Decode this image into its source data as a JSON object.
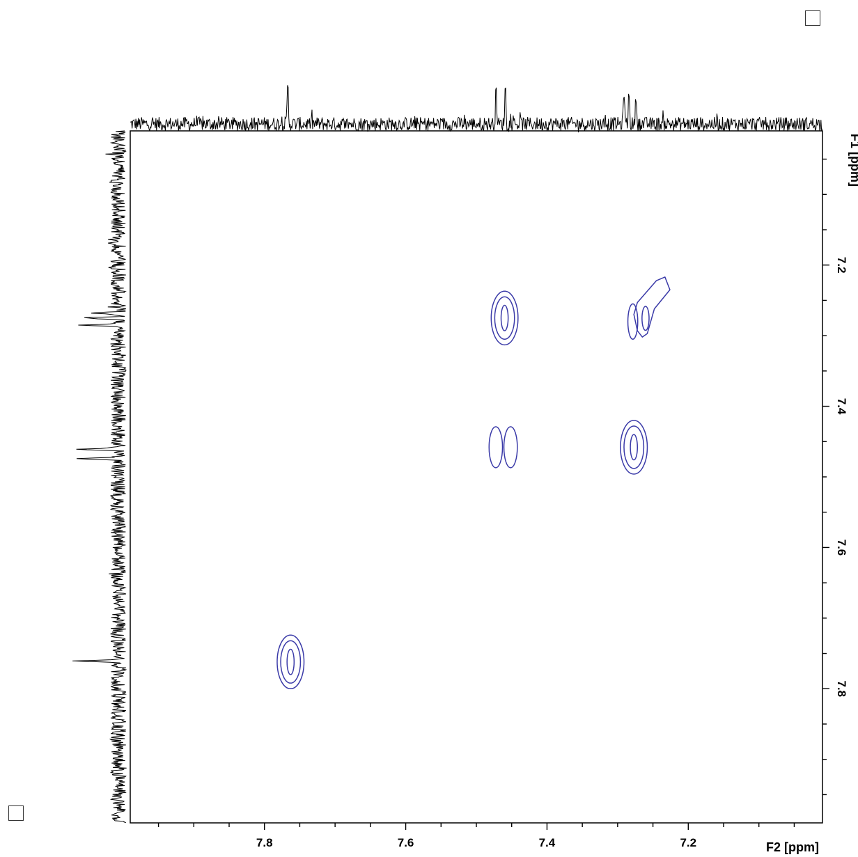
{
  "chart_data": {
    "type": "contour",
    "xlabel": "F2 [ppm]",
    "ylabel": "F1 [ppm]",
    "xlim": [
      7.99,
      7.01
    ],
    "ylim": [
      7.01,
      7.99
    ],
    "x_ticks": [
      7.8,
      7.6,
      7.4,
      7.2
    ],
    "y_ticks": [
      7.2,
      7.4,
      7.6,
      7.8
    ],
    "x_tick_labels": [
      "7.8",
      "7.6",
      "7.4",
      "7.2"
    ],
    "y_tick_labels": [
      "7.2",
      "7.4",
      "7.6",
      "7.8"
    ],
    "contour_color": "#3a3aa8",
    "projection_color": "#000000",
    "peaks": [
      {
        "x": 7.763,
        "y": 7.762,
        "levels": 3,
        "shape": "single"
      },
      {
        "x": 7.46,
        "y": 7.275,
        "levels": 3,
        "shape": "single"
      },
      {
        "x": 7.462,
        "y": 7.458,
        "levels": 1,
        "shape": "double"
      },
      {
        "x": 7.277,
        "y": 7.458,
        "levels": 3,
        "shape": "single"
      },
      {
        "x": 7.283,
        "y": 7.28,
        "levels": 1,
        "shape": "diagonal"
      }
    ],
    "projection_peaks_f2": [
      7.767,
      7.472,
      7.459,
      7.291,
      7.284,
      7.274
    ],
    "projection_peaks_f1": [
      7.761,
      7.474,
      7.461,
      7.285,
      7.275,
      7.268
    ]
  }
}
